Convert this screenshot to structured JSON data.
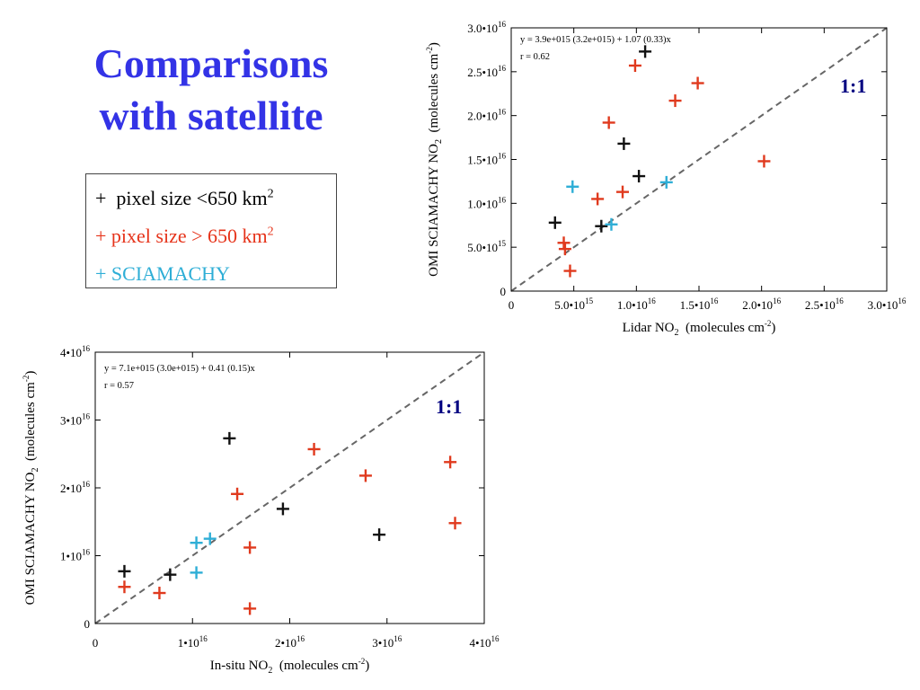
{
  "slide": {
    "title_line1": "Comparisons",
    "title_line2": "with satellite"
  },
  "legend": {
    "items": [
      {
        "marker": "+",
        "text": "pixel size <650 km",
        "sup": "2",
        "color": "#000000"
      },
      {
        "marker": "+",
        "text": "pixel size > 650 km",
        "sup": "2",
        "color": "#e6331a"
      },
      {
        "marker": "+",
        "text": "SCIAMACHY",
        "sup": "",
        "color": "#2eaed6"
      }
    ]
  },
  "colors": {
    "small_pixel": "#111111",
    "large_pixel": "#e03a1e",
    "sciamachy": "#2eaed6",
    "one_to_one_label": "#000080",
    "identity_line": "#666666"
  },
  "chart_data": [
    {
      "type": "scatter",
      "xlabel": "Lidar NO",
      "xlabel_sub": "2",
      "xlabel_unit": "(molecules cm",
      "xlabel_unit_sup": "-2",
      "ylabel": "OMI SCIAMACHY NO",
      "ylabel_sub": "2",
      "ylabel_unit": "(molecules cm",
      "ylabel_unit_sup": "-2",
      "xlim": [
        0,
        3e+16
      ],
      "ylim": [
        0,
        3e+16
      ],
      "xticks": [
        {
          "v": 0,
          "m": "0",
          "e": ""
        },
        {
          "v": 5000000000000000.0,
          "m": "5.0•10",
          "e": "15"
        },
        {
          "v": 1e+16,
          "m": "1.0•10",
          "e": "16"
        },
        {
          "v": 1.5e+16,
          "m": "1.5•10",
          "e": "16"
        },
        {
          "v": 2e+16,
          "m": "2.0•10",
          "e": "16"
        },
        {
          "v": 2.5e+16,
          "m": "2.5•10",
          "e": "16"
        },
        {
          "v": 3e+16,
          "m": "3.0•10",
          "e": "16"
        }
      ],
      "yticks": [
        {
          "v": 0,
          "m": "0",
          "e": ""
        },
        {
          "v": 5000000000000000.0,
          "m": "5.0•10",
          "e": "15"
        },
        {
          "v": 1e+16,
          "m": "1.0•10",
          "e": "16"
        },
        {
          "v": 1.5e+16,
          "m": "1.5•10",
          "e": "16"
        },
        {
          "v": 2e+16,
          "m": "2.0•10",
          "e": "16"
        },
        {
          "v": 2.5e+16,
          "m": "2.5•10",
          "e": "16"
        },
        {
          "v": 3e+16,
          "m": "3.0•10",
          "e": "16"
        }
      ],
      "annotation_line1": "y =   3.9e+015 (3.2e+015) + 1.07 (0.33)x",
      "annotation_line2": "r =  0.62",
      "identity_label": "1:1",
      "series": [
        {
          "name": "pixel size <650 km2",
          "color_key": "small_pixel",
          "points": [
            [
              3500000000000000.0,
              7800000000000000.0
            ],
            [
              7200000000000000.0,
              7400000000000000.0
            ],
            [
              9000000000000000.0,
              1.68e+16
            ],
            [
              1.02e+16,
              1.31e+16
            ],
            [
              1.07e+16,
              2.73e+16
            ]
          ]
        },
        {
          "name": "pixel size > 650 km2",
          "color_key": "large_pixel",
          "points": [
            [
              4200000000000000.0,
              5500000000000000.0
            ],
            [
              4300000000000000.0,
              4800000000000000.0
            ],
            [
              4700000000000000.0,
              2300000000000000.0
            ],
            [
              6900000000000000.0,
              1.05e+16
            ],
            [
              7800000000000000.0,
              1.92e+16
            ],
            [
              8900000000000000.0,
              1.13e+16
            ],
            [
              9900000000000000.0,
              2.57e+16
            ],
            [
              1.31e+16,
              2.17e+16
            ],
            [
              1.49e+16,
              2.37e+16
            ],
            [
              2.02e+16,
              1.48e+16
            ]
          ]
        },
        {
          "name": "SCIAMACHY",
          "color_key": "sciamachy",
          "points": [
            [
              4900000000000000.0,
              1.19e+16
            ],
            [
              8000000000000000.0,
              7600000000000000.0
            ],
            [
              1.24e+16,
              1.24e+16
            ]
          ]
        }
      ]
    },
    {
      "type": "scatter",
      "xlabel": "In-situ NO",
      "xlabel_sub": "2",
      "xlabel_unit": "(molecules cm",
      "xlabel_unit_sup": "-2",
      "ylabel": "OMI SCIAMACHY NO",
      "ylabel_sub": "2",
      "ylabel_unit": "(molecules cm",
      "ylabel_unit_sup": "-2",
      "xlim": [
        0,
        4e+16
      ],
      "ylim": [
        0,
        4e+16
      ],
      "xticks": [
        {
          "v": 0,
          "m": "0",
          "e": ""
        },
        {
          "v": 1e+16,
          "m": "1•10",
          "e": "16"
        },
        {
          "v": 2e+16,
          "m": "2•10",
          "e": "16"
        },
        {
          "v": 3e+16,
          "m": "3•10",
          "e": "16"
        },
        {
          "v": 4e+16,
          "m": "4•10",
          "e": "16"
        }
      ],
      "yticks": [
        {
          "v": 0,
          "m": "0",
          "e": ""
        },
        {
          "v": 1e+16,
          "m": "1•10",
          "e": "16"
        },
        {
          "v": 2e+16,
          "m": "2•10",
          "e": "16"
        },
        {
          "v": 3e+16,
          "m": "3•10",
          "e": "16"
        },
        {
          "v": 4e+16,
          "m": "4•10",
          "e": "16"
        }
      ],
      "annotation_line1": "y =   7.1e+015 (3.0e+015) + 0.41 (0.15)x",
      "annotation_line2": "r =  0.57",
      "identity_label": "1:1",
      "series": [
        {
          "name": "pixel size <650 km2",
          "color_key": "small_pixel",
          "points": [
            [
              3000000000000000.0,
              7700000000000000.0
            ],
            [
              7700000000000000.0,
              7200000000000000.0
            ],
            [
              1.38e+16,
              2.73e+16
            ],
            [
              1.93e+16,
              1.69e+16
            ],
            [
              2.92e+16,
              1.31e+16
            ]
          ]
        },
        {
          "name": "pixel size > 650 km2",
          "color_key": "large_pixel",
          "points": [
            [
              3000000000000000.0,
              5400000000000000.0
            ],
            [
              6600000000000000.0,
              4500000000000000.0
            ],
            [
              1.46e+16,
              1.91e+16
            ],
            [
              1.59e+16,
              1.12e+16
            ],
            [
              1.59e+16,
              2200000000000000.0
            ],
            [
              2.25e+16,
              2.57e+16
            ],
            [
              2.78e+16,
              2.18e+16
            ],
            [
              3.65e+16,
              2.38e+16
            ],
            [
              3.7e+16,
              1.48e+16
            ]
          ]
        },
        {
          "name": "SCIAMACHY",
          "color_key": "sciamachy",
          "points": [
            [
              1.04e+16,
              1.19e+16
            ],
            [
              1.04e+16,
              7500000000000000.0
            ],
            [
              1.18e+16,
              1.25e+16
            ]
          ]
        }
      ]
    }
  ]
}
